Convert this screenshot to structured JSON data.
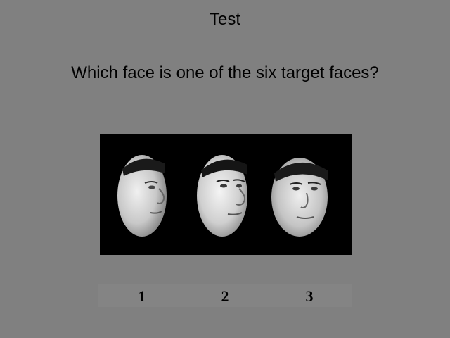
{
  "title": "Test",
  "question": "Which face is one of the six target faces?",
  "choices": [
    "1",
    "2",
    "3"
  ],
  "colors": {
    "background": "#808080",
    "panel": "#000000",
    "text": "#000000"
  }
}
